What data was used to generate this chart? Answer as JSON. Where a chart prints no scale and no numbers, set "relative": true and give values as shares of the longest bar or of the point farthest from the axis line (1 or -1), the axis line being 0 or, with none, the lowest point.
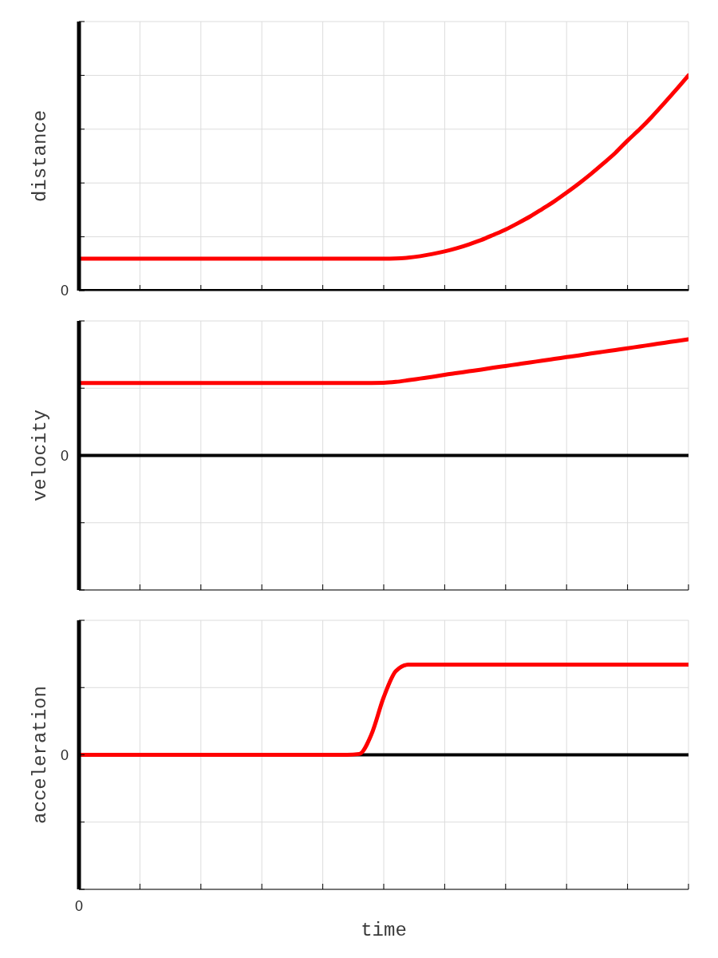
{
  "chart_data": [
    {
      "type": "line",
      "ylabel": "distance",
      "relative": true,
      "categories": [
        null,
        null,
        null,
        null,
        null,
        null,
        null,
        null,
        null,
        null,
        null,
        null,
        null,
        null,
        null,
        null,
        null,
        null,
        null,
        null,
        null,
        null,
        null,
        null,
        null,
        null,
        null,
        null,
        null,
        null,
        null,
        null,
        null,
        null,
        null,
        null,
        null,
        null,
        null,
        null,
        null,
        null,
        null,
        null,
        null,
        null,
        null,
        null,
        null,
        null,
        null
      ],
      "values": [
        0.148,
        0.148,
        0.148,
        0.148,
        0.148,
        0.148,
        0.148,
        0.148,
        0.148,
        0.148,
        0.148,
        0.148,
        0.148,
        0.148,
        0.148,
        0.148,
        0.148,
        0.148,
        0.148,
        0.148,
        0.148,
        0.148,
        0.148,
        0.148,
        0.148,
        0.148,
        0.149,
        0.153,
        0.16,
        0.17,
        0.182,
        0.197,
        0.215,
        0.235,
        0.259,
        0.284,
        0.313,
        0.344,
        0.379,
        0.415,
        0.455,
        0.497,
        0.542,
        0.59,
        0.64,
        0.697,
        0.75,
        0.808,
        0.87,
        0.934,
        1
      ],
      "color": "#ff0000",
      "grid": true,
      "annotations": [
        "0"
      ]
    },
    {
      "type": "line",
      "ylabel": "velocity",
      "relative": true,
      "categories": [
        null,
        null,
        null,
        null,
        null,
        null,
        null,
        null,
        null,
        null,
        null,
        null,
        null,
        null,
        null,
        null,
        null,
        null,
        null,
        null,
        null,
        null,
        null,
        null,
        null,
        null,
        null,
        null,
        null,
        null,
        null,
        null,
        null,
        null,
        null,
        null,
        null,
        null,
        null,
        null,
        null,
        null,
        null,
        null,
        null,
        null,
        null,
        null,
        null,
        null,
        null
      ],
      "values": [
        0.624,
        0.624,
        0.624,
        0.624,
        0.624,
        0.624,
        0.624,
        0.624,
        0.624,
        0.624,
        0.624,
        0.624,
        0.624,
        0.624,
        0.624,
        0.624,
        0.624,
        0.624,
        0.624,
        0.624,
        0.624,
        0.624,
        0.624,
        0.624,
        0.624,
        0.625,
        0.633,
        0.647,
        0.662,
        0.677,
        0.694,
        0.709,
        0.724,
        0.739,
        0.755,
        0.77,
        0.785,
        0.8,
        0.816,
        0.831,
        0.846,
        0.861,
        0.877,
        0.892,
        0.907,
        0.922,
        0.938,
        0.953,
        0.969,
        0.984,
        1
      ],
      "color": "#ff0000",
      "grid": true,
      "annotations": [
        "0"
      ]
    },
    {
      "type": "line",
      "ylabel": "acceleration",
      "xlabel": "time",
      "relative": true,
      "categories": [
        null,
        null,
        null,
        null,
        null,
        null,
        null,
        null,
        null,
        null,
        null,
        null,
        null,
        null,
        null,
        null,
        null,
        null,
        null,
        null,
        null,
        null,
        null,
        null,
        null,
        null,
        null,
        null,
        null,
        null,
        null,
        null,
        null,
        null,
        null,
        null,
        null,
        null,
        null,
        null,
        null,
        null,
        null,
        null,
        null,
        null,
        null,
        null,
        null,
        null,
        null
      ],
      "values": [
        0,
        0,
        0,
        0,
        0,
        0,
        0,
        0,
        0,
        0,
        0,
        0,
        0,
        0,
        0,
        0,
        0,
        0,
        0,
        0,
        0,
        0,
        0,
        0.01,
        0.23,
        0.64,
        0.93,
        1,
        1,
        1,
        1,
        1,
        1,
        1,
        1,
        1,
        1,
        1,
        1,
        1,
        1,
        1,
        1,
        1,
        1,
        1,
        1,
        1,
        1,
        1,
        1
      ],
      "color": "#ff0000",
      "grid": true,
      "annotations": [
        "0",
        "0"
      ]
    }
  ]
}
